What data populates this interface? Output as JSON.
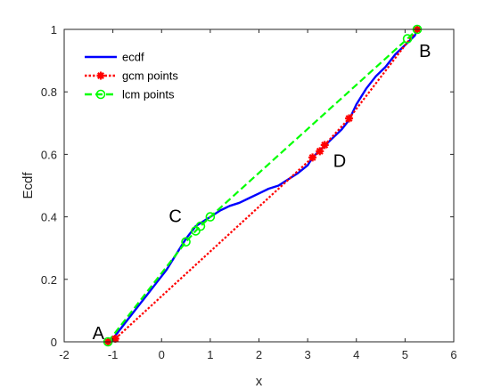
{
  "chart_data": {
    "type": "line",
    "xlabel": "x",
    "ylabel": "Ecdf",
    "xlim": [
      -2,
      6
    ],
    "ylim": [
      0,
      1
    ],
    "xticks": [
      -2,
      -1,
      0,
      1,
      2,
      3,
      4,
      5,
      6
    ],
    "yticks": [
      0,
      0.2,
      0.4,
      0.6,
      0.8,
      1
    ],
    "xtick_labels": [
      "-2",
      "-1",
      "0",
      "1",
      "2",
      "3",
      "4",
      "5",
      "6"
    ],
    "ytick_labels": [
      "0",
      "0.2",
      "0.4",
      "0.6",
      "0.8",
      "1"
    ],
    "grid": false,
    "legend_position": "top-left",
    "series": [
      {
        "name": "ecdf",
        "style": "solid",
        "color": "#0000ff",
        "marker": "none",
        "x": [
          -1.1,
          -1.0,
          -0.9,
          -0.7,
          -0.5,
          -0.3,
          -0.1,
          0.1,
          0.3,
          0.5,
          0.7,
          0.9,
          1.0,
          1.2,
          1.4,
          1.6,
          1.8,
          2.0,
          2.2,
          2.4,
          2.6,
          2.8,
          3.0,
          3.1,
          3.3,
          3.5,
          3.7,
          3.85,
          4.0,
          4.2,
          4.4,
          4.6,
          4.8,
          5.0,
          5.2,
          5.25
        ],
        "y": [
          0.0,
          0.01,
          0.03,
          0.07,
          0.11,
          0.15,
          0.19,
          0.23,
          0.28,
          0.33,
          0.37,
          0.39,
          0.4,
          0.42,
          0.435,
          0.445,
          0.46,
          0.475,
          0.49,
          0.5,
          0.52,
          0.54,
          0.565,
          0.59,
          0.62,
          0.65,
          0.68,
          0.71,
          0.76,
          0.81,
          0.85,
          0.88,
          0.92,
          0.95,
          0.98,
          1.0
        ]
      },
      {
        "name": "gcm points",
        "style": "dotted",
        "color": "#ff0000",
        "marker": "star",
        "x": [
          -1.1,
          -0.95,
          3.1,
          3.25,
          3.35,
          3.85,
          5.25
        ],
        "y": [
          0.0,
          0.01,
          0.59,
          0.61,
          0.63,
          0.715,
          1.0
        ]
      },
      {
        "name": "lcm points",
        "style": "dashed",
        "color": "#00ff00",
        "marker": "circle",
        "x": [
          -1.1,
          0.5,
          0.7,
          0.8,
          1.0,
          5.05,
          5.25
        ],
        "y": [
          0.0,
          0.32,
          0.355,
          0.37,
          0.4,
          0.97,
          1.0
        ]
      }
    ],
    "annotations": [
      {
        "text": "A",
        "x": -1.3,
        "y": 0.0
      },
      {
        "text": "B",
        "x": 5.3,
        "y": 1.0
      },
      {
        "text": "C",
        "x": 0.5,
        "y": 0.4
      },
      {
        "text": "D",
        "x": 3.4,
        "y": 0.6
      }
    ]
  }
}
